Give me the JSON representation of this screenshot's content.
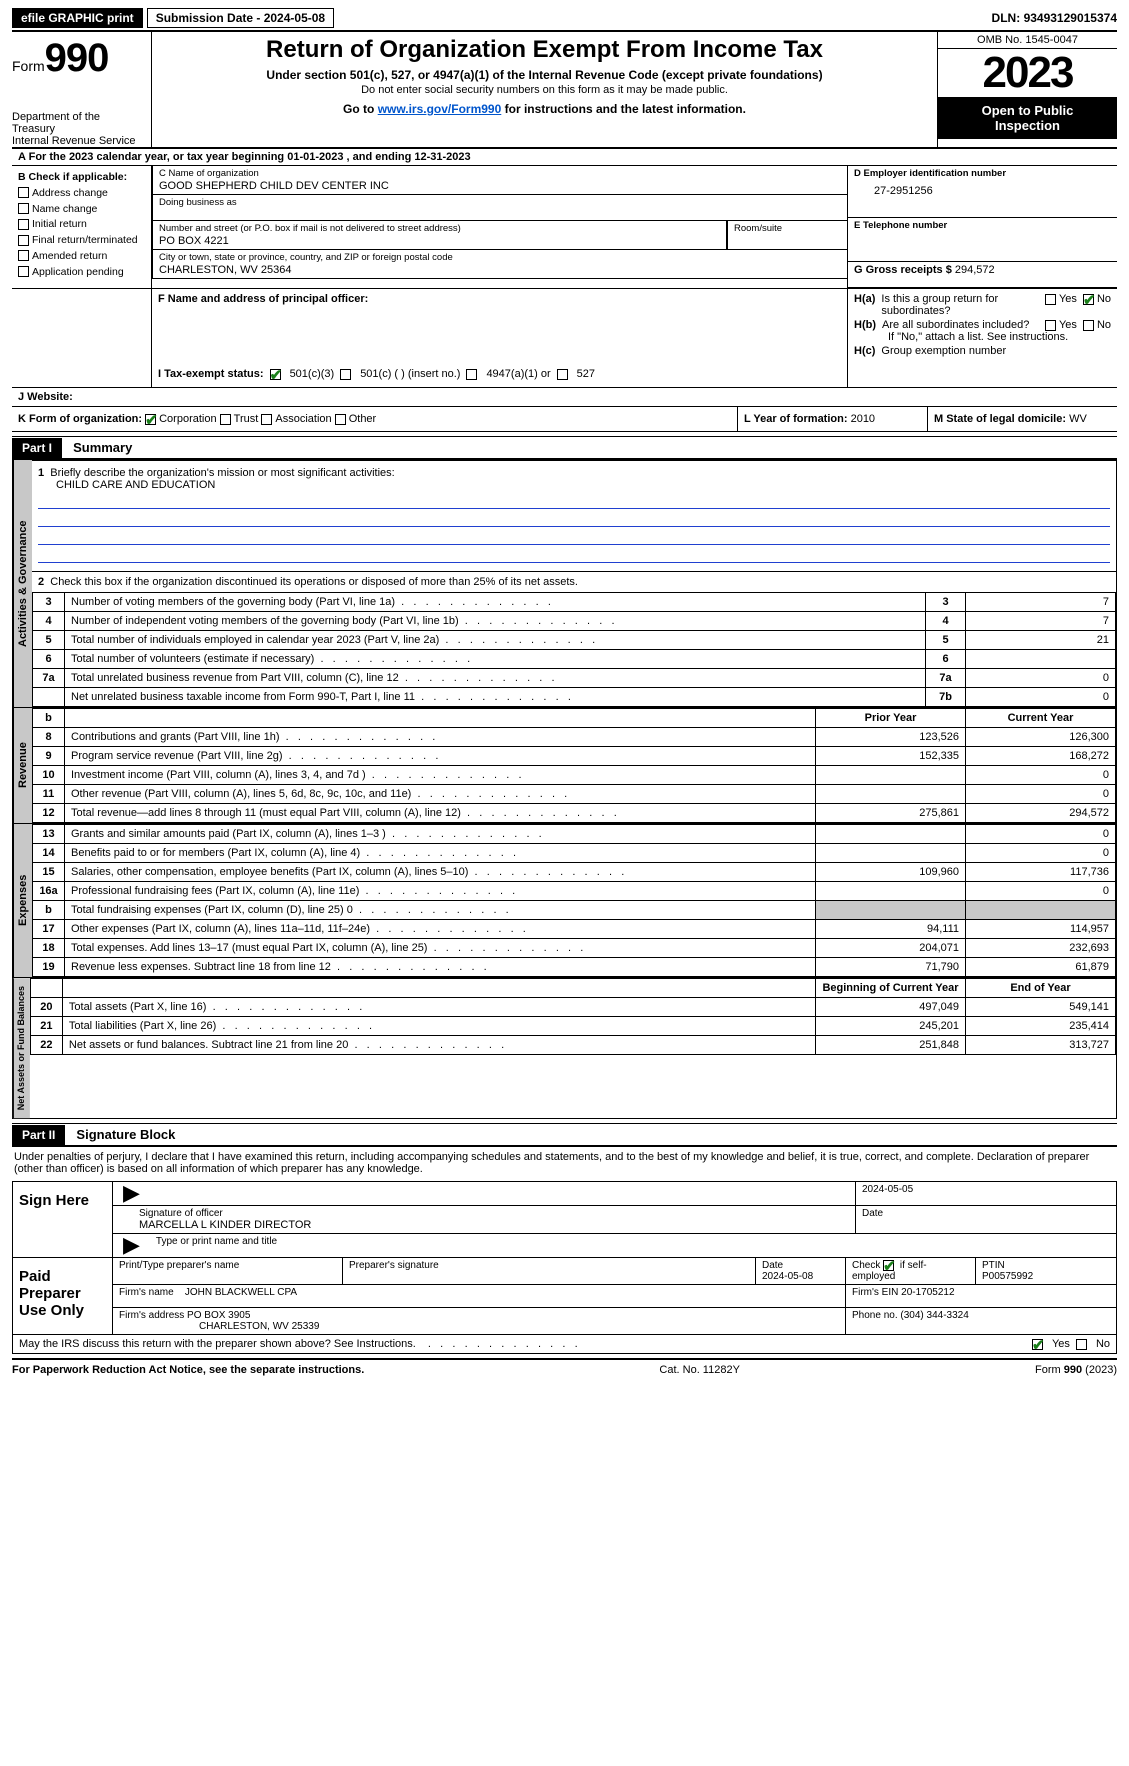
{
  "topbar": {
    "efile": "efile GRAPHIC print",
    "submission": "Submission Date - 2024-05-08",
    "dln_label": "DLN:",
    "dln": "93493129015374"
  },
  "header": {
    "form_word": "Form",
    "form_num": "990",
    "dept1": "Department of the Treasury",
    "dept2": "Internal Revenue Service",
    "title": "Return of Organization Exempt From Income Tax",
    "sub1": "Under section 501(c), 527, or 4947(a)(1) of the Internal Revenue Code (except private foundations)",
    "sub2": "Do not enter social security numbers on this form as it may be made public.",
    "sub3a": "Go to ",
    "sub3_link": "www.irs.gov/Form990",
    "sub3b": " for instructions and the latest information.",
    "omb": "OMB No. 1545-0047",
    "year": "2023",
    "open1": "Open to Public",
    "open2": "Inspection"
  },
  "lineA": {
    "a": "A",
    "text": "For the 2023 calendar year, or tax year beginning 01-01-2023    , and ending 12-31-2023"
  },
  "boxB": {
    "hdr": "B Check if applicable:",
    "addr": "Address change",
    "name": "Name change",
    "init": "Initial return",
    "final": "Final return/terminated",
    "amend": "Amended return",
    "app": "Application pending"
  },
  "boxC": {
    "name_lab": "C Name of organization",
    "name": "GOOD SHEPHERD CHILD DEV CENTER INC",
    "dba_lab": "Doing business as",
    "street_lab": "Number and street (or P.O. box if mail is not delivered to street address)",
    "street": "PO BOX 4221",
    "room_lab": "Room/suite",
    "city_lab": "City or town, state or province, country, and ZIP or foreign postal code",
    "city": "CHARLESTON, WV  25364"
  },
  "boxD": {
    "lab": "D Employer identification number",
    "val": "27-2951256"
  },
  "boxE": {
    "lab": "E Telephone number"
  },
  "boxG": {
    "lab": "G Gross receipts $",
    "val": "294,572"
  },
  "boxF": {
    "lab": "F  Name and address of principal officer:"
  },
  "boxH": {
    "a_lab": "H(a)",
    "a_txt1": "Is this a group return for",
    "a_txt2": "subordinates?",
    "b_lab": "H(b)",
    "b_txt1": "Are all subordinates included?",
    "b_txt2": "If \"No,\" attach a list. See instructions.",
    "c_lab": "H(c)",
    "c_txt": "Group exemption number",
    "yes": "Yes",
    "no": "No"
  },
  "taxI": {
    "lab": "I   Tax-exempt status:",
    "c3": "501(c)(3)",
    "c": "501(c) (  ) (insert no.)",
    "a1": "4947(a)(1) or",
    "k527": "527"
  },
  "boxJ": {
    "lab": "J   Website:"
  },
  "boxK": {
    "lab": "K Form of organization:",
    "corp": "Corporation",
    "trust": "Trust",
    "assoc": "Association",
    "other": "Other"
  },
  "boxL": {
    "lab": "L Year of formation:",
    "val": "2010"
  },
  "boxM": {
    "lab": "M State of legal domicile:",
    "val": "WV"
  },
  "part1": {
    "hdr": "Part I",
    "title": "Summary",
    "l1_lab": "1",
    "l1_txt": "Briefly describe the organization's mission or most significant activities:",
    "l1_val": "CHILD CARE AND EDUCATION",
    "l2_lab": "2",
    "l2_txt": "Check this box        if the organization discontinued its operations or disposed of more than 25% of its net assets.",
    "tab_gov": "Activities & Governance",
    "tab_rev": "Revenue",
    "tab_exp": "Expenses",
    "tab_net": "Net Assets or Fund Balances",
    "rows_gov": [
      {
        "n": "3",
        "d": "Number of voting members of the governing body (Part VI, line 1a)",
        "k": "3",
        "v": "7"
      },
      {
        "n": "4",
        "d": "Number of independent voting members of the governing body (Part VI, line 1b)",
        "k": "4",
        "v": "7"
      },
      {
        "n": "5",
        "d": "Total number of individuals employed in calendar year 2023 (Part V, line 2a)",
        "k": "5",
        "v": "21"
      },
      {
        "n": "6",
        "d": "Total number of volunteers (estimate if necessary)",
        "k": "6",
        "v": ""
      },
      {
        "n": "7a",
        "d": "Total unrelated business revenue from Part VIII, column (C), line 12",
        "k": "7a",
        "v": "0"
      },
      {
        "n": "",
        "d": "Net unrelated business taxable income from Form 990-T, Part I, line 11",
        "k": "7b",
        "v": "0"
      }
    ],
    "col_b": "b",
    "col_prior": "Prior Year",
    "col_curr": "Current Year",
    "rows_rev": [
      {
        "n": "8",
        "d": "Contributions and grants (Part VIII, line 1h)",
        "p": "123,526",
        "c": "126,300"
      },
      {
        "n": "9",
        "d": "Program service revenue (Part VIII, line 2g)",
        "p": "152,335",
        "c": "168,272"
      },
      {
        "n": "10",
        "d": "Investment income (Part VIII, column (A), lines 3, 4, and 7d )",
        "p": "",
        "c": "0"
      },
      {
        "n": "11",
        "d": "Other revenue (Part VIII, column (A), lines 5, 6d, 8c, 9c, 10c, and 11e)",
        "p": "",
        "c": "0"
      },
      {
        "n": "12",
        "d": "Total revenue—add lines 8 through 11 (must equal Part VIII, column (A), line 12)",
        "p": "275,861",
        "c": "294,572"
      }
    ],
    "rows_exp": [
      {
        "n": "13",
        "d": "Grants and similar amounts paid (Part IX, column (A), lines 1–3 )",
        "p": "",
        "c": "0"
      },
      {
        "n": "14",
        "d": "Benefits paid to or for members (Part IX, column (A), line 4)",
        "p": "",
        "c": "0"
      },
      {
        "n": "15",
        "d": "Salaries, other compensation, employee benefits (Part IX, column (A), lines 5–10)",
        "p": "109,960",
        "c": "117,736"
      },
      {
        "n": "16a",
        "d": "Professional fundraising fees (Part IX, column (A), line 11e)",
        "p": "",
        "c": "0"
      },
      {
        "n": "b",
        "d": "Total fundraising expenses (Part IX, column (D), line 25) 0",
        "p": "SHADE",
        "c": "SHADE"
      },
      {
        "n": "17",
        "d": "Other expenses (Part IX, column (A), lines 11a–11d, 11f–24e)",
        "p": "94,111",
        "c": "114,957"
      },
      {
        "n": "18",
        "d": "Total expenses. Add lines 13–17 (must equal Part IX, column (A), line 25)",
        "p": "204,071",
        "c": "232,693"
      },
      {
        "n": "19",
        "d": "Revenue less expenses. Subtract line 18 from line 12",
        "p": "71,790",
        "c": "61,879"
      }
    ],
    "col_beg": "Beginning of Current Year",
    "col_end": "End of Year",
    "rows_net": [
      {
        "n": "20",
        "d": "Total assets (Part X, line 16)",
        "p": "497,049",
        "c": "549,141"
      },
      {
        "n": "21",
        "d": "Total liabilities (Part X, line 26)",
        "p": "245,201",
        "c": "235,414"
      },
      {
        "n": "22",
        "d": "Net assets or fund balances. Subtract line 21 from line 20",
        "p": "251,848",
        "c": "313,727"
      }
    ]
  },
  "part2": {
    "hdr": "Part II",
    "title": "Signature Block",
    "decl": "Under penalties of perjury, I declare that I have examined this return, including accompanying schedules and statements, and to the best of my knowledge and belief, it is true, correct, and complete. Declaration of preparer (other than officer) is based on all information of which preparer has any knowledge.",
    "sign_here": "Sign Here",
    "sig_off": "Signature of officer",
    "officer": "MARCELLA L KINDER  DIRECTOR",
    "type_name": "Type or print name and title",
    "date_lab": "Date",
    "sig_date": "2024-05-05",
    "paid": "Paid Preparer Use Only",
    "prep_name_lab": "Print/Type preparer's name",
    "prep_sig_lab": "Preparer's signature",
    "prep_date": "2024-05-08",
    "self_emp": "Check        if self-employed",
    "ptin_lab": "PTIN",
    "ptin": "P00575992",
    "firm_name_lab": "Firm's name",
    "firm_name": "JOHN BLACKWELL CPA",
    "firm_ein_lab": "Firm's EIN",
    "firm_ein": "20-1705212",
    "firm_addr_lab": "Firm's address",
    "firm_addr1": "PO BOX 3905",
    "firm_addr2": "CHARLESTON, WV  25339",
    "phone_lab": "Phone no.",
    "phone": "(304) 344-3324",
    "discuss": "May the IRS discuss this return with the preparer shown above? See Instructions.",
    "yes": "Yes",
    "no": "No"
  },
  "footer": {
    "left": "For Paperwork Reduction Act Notice, see the separate instructions.",
    "mid": "Cat. No. 11282Y",
    "right_a": "Form ",
    "right_b": "990",
    "right_c": " (2023)"
  }
}
